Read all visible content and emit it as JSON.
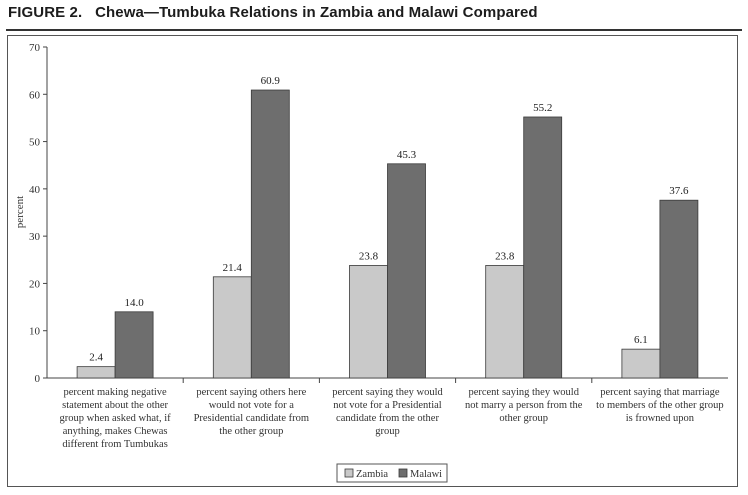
{
  "figure": {
    "label": "FIGURE 2.",
    "title": "Chewa—Tumbuka Relations in Zambia and Malawi Compared"
  },
  "chart_data": {
    "type": "bar",
    "categories": [
      [
        "percent making negative",
        "statement about the other",
        "group when asked what, if",
        "anything, makes Chewas",
        "different from Tumbukas"
      ],
      [
        "percent saying others here",
        "would not vote for a",
        "Presidential candidate from",
        "the other group"
      ],
      [
        "percent saying they would",
        "not vote for a Presidential",
        "candidate from the other",
        "group"
      ],
      [
        "percent saying they would",
        "not marry a person from the",
        "other group"
      ],
      [
        "percent saying that marriage",
        "to members of the other group",
        "is frowned upon"
      ]
    ],
    "series": [
      {
        "name": "Zambia",
        "values": [
          2.4,
          21.4,
          23.8,
          23.8,
          6.1
        ],
        "labels": [
          "2.4",
          "21.4",
          "23.8",
          "23.8",
          "6.1"
        ],
        "color": "#c9c9c9"
      },
      {
        "name": "Malawi",
        "values": [
          14.0,
          60.9,
          45.3,
          55.2,
          37.6
        ],
        "labels": [
          "14.0",
          "60.9",
          "45.3",
          "55.2",
          "37.6"
        ],
        "color": "#6e6e6e"
      }
    ],
    "ylabel": "percent",
    "xlabel": "",
    "ylim": [
      0,
      70
    ],
    "yticks": [
      0,
      10,
      20,
      30,
      40,
      50,
      60,
      70
    ],
    "grid": false,
    "legend_position": "bottom-center"
  }
}
